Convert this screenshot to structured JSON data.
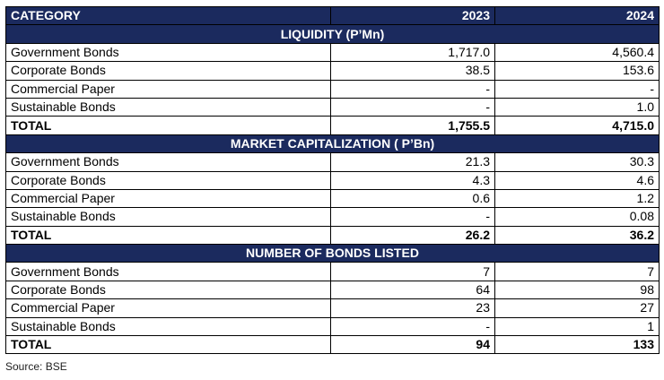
{
  "header": {
    "category": "CATEGORY",
    "year1": "2023",
    "year2": "2024"
  },
  "sections": [
    {
      "title": "LIQUIDITY (P’Mn)",
      "rows": [
        {
          "label": "Government Bonds",
          "v2023": "1,717.0",
          "v2024": "4,560.4"
        },
        {
          "label": "Corporate Bonds",
          "v2023": "38.5",
          "v2024": "153.6"
        },
        {
          "label": "Commercial Paper",
          "v2023": "-",
          "v2024": "-"
        },
        {
          "label": "Sustainable Bonds",
          "v2023": "-",
          "v2024": "1.0"
        }
      ],
      "total": {
        "label": "TOTAL",
        "v2023": "1,755.5",
        "v2024": "4,715.0"
      }
    },
    {
      "title": "MARKET CAPITALIZATION ( P’Bn)",
      "rows": [
        {
          "label": "Government Bonds",
          "v2023": "21.3",
          "v2024": "30.3"
        },
        {
          "label": "Corporate Bonds",
          "v2023": "4.3",
          "v2024": "4.6"
        },
        {
          "label": "Commercial Paper",
          "v2023": "0.6",
          "v2024": "1.2"
        },
        {
          "label": "Sustainable Bonds",
          "v2023": "-",
          "v2024": "0.08"
        }
      ],
      "total": {
        "label": "TOTAL",
        "v2023": "26.2",
        "v2024": "36.2"
      }
    },
    {
      "title": "NUMBER OF BONDS LISTED",
      "rows": [
        {
          "label": "Government Bonds",
          "v2023": "7",
          "v2024": "7"
        },
        {
          "label": "Corporate Bonds",
          "v2023": "64",
          "v2024": "98"
        },
        {
          "label": "Commercial Paper",
          "v2023": "23",
          "v2024": "27"
        },
        {
          "label": "Sustainable Bonds",
          "v2023": "-",
          "v2024": "1"
        }
      ],
      "total": {
        "label": "TOTAL",
        "v2023": "94",
        "v2024": "133"
      }
    }
  ],
  "source": "Source: BSE",
  "colors": {
    "header_bg": "#1b2a5e",
    "header_text": "#ffffff",
    "border": "#000000"
  }
}
